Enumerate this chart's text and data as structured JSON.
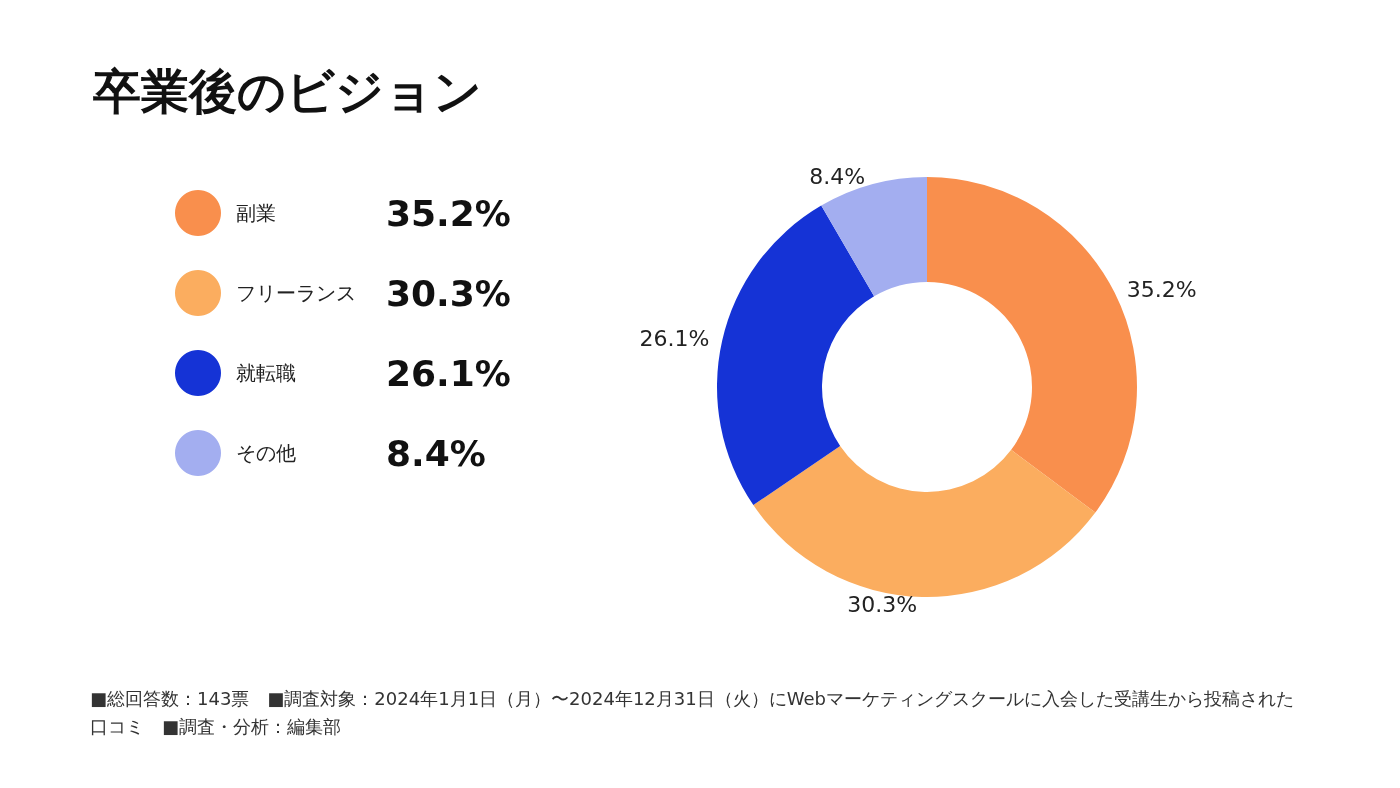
{
  "chart_data": {
    "type": "donut",
    "title": "卒業後のビジョン",
    "categories": [
      "副業",
      "フリーランス",
      "就転職",
      "その他"
    ],
    "values": [
      35.2,
      30.3,
      26.1,
      8.4
    ],
    "value_labels": [
      "35.2%",
      "30.3%",
      "26.1%",
      "8.4%"
    ],
    "colors": [
      "#f98f4d",
      "#fbad5f",
      "#1533d6",
      "#a3aef0"
    ],
    "legend": "left",
    "annotations": [
      "■総回答数：143票",
      "■調査対象：2024年1月1日（月）〜2024年12月31日（火）にWebマーケティングスクールに入会した受講生から投稿された口コミ",
      "■調査・分析：編集部"
    ]
  }
}
